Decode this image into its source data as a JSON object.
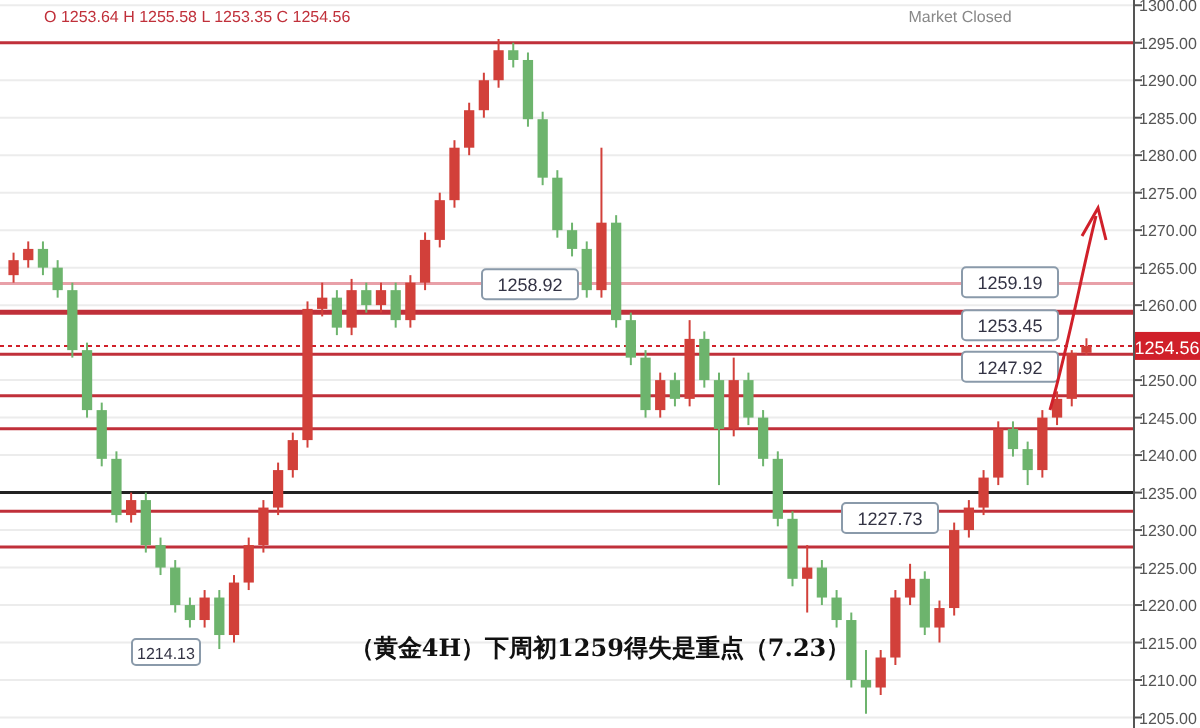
{
  "chart_data": {
    "type": "candlestick",
    "title": "（黄金4H）下周初1259得失是重点（7.23）",
    "categories": [
      null,
      null,
      null,
      null,
      null,
      null,
      null,
      null,
      null,
      null,
      null,
      null,
      null,
      null,
      null,
      null,
      null,
      null,
      null,
      null,
      null,
      null,
      null,
      null,
      null,
      null,
      null,
      null,
      null,
      null,
      null,
      null,
      null,
      null,
      null,
      null,
      null,
      null,
      null,
      null,
      null,
      null,
      null,
      null,
      null,
      null,
      null,
      null,
      null,
      null,
      null,
      null,
      null,
      null,
      null,
      null,
      null,
      null,
      null,
      null,
      null,
      null,
      null,
      null,
      null,
      null,
      null,
      null,
      null,
      null,
      null,
      null,
      null,
      null
    ],
    "ohlc": [
      [
        1264,
        1267,
        1263,
        1266
      ],
      [
        1266,
        1268.5,
        1265,
        1267.5
      ],
      [
        1267.5,
        1268.5,
        1264,
        1265
      ],
      [
        1265,
        1266,
        1261,
        1262
      ],
      [
        1262,
        1263,
        1253,
        1254
      ],
      [
        1254,
        1255,
        1245,
        1246
      ],
      [
        1246,
        1247,
        1238.5,
        1239.5
      ],
      [
        1239.5,
        1240.5,
        1231,
        1232
      ],
      [
        1232,
        1235,
        1231,
        1234
      ],
      [
        1234,
        1235,
        1227,
        1228
      ],
      [
        1228,
        1229,
        1224,
        1225
      ],
      [
        1225,
        1226,
        1219,
        1220
      ],
      [
        1220,
        1221,
        1217,
        1218
      ],
      [
        1218,
        1222,
        1217,
        1221
      ],
      [
        1221,
        1222,
        1214.13,
        1216
      ],
      [
        1216,
        1224,
        1215,
        1223
      ],
      [
        1223,
        1229,
        1222,
        1228
      ],
      [
        1228,
        1234,
        1227,
        1233
      ],
      [
        1233,
        1239,
        1232,
        1238
      ],
      [
        1238,
        1243,
        1237,
        1242
      ],
      [
        1242,
        1260.5,
        1241,
        1259.5
      ],
      [
        1259.5,
        1263,
        1258.5,
        1261
      ],
      [
        1261,
        1262,
        1256,
        1257
      ],
      [
        1257,
        1263.5,
        1256,
        1262
      ],
      [
        1262,
        1263,
        1259,
        1260
      ],
      [
        1260,
        1263,
        1259,
        1262
      ],
      [
        1262,
        1263,
        1257,
        1258
      ],
      [
        1258,
        1264,
        1257,
        1263
      ],
      [
        1263,
        1269.7,
        1262,
        1268.7
      ],
      [
        1268.7,
        1275,
        1267.7,
        1274
      ],
      [
        1274,
        1282,
        1273,
        1281
      ],
      [
        1281,
        1287,
        1280,
        1286
      ],
      [
        1286,
        1291,
        1285,
        1290
      ],
      [
        1290,
        1295.5,
        1289,
        1294
      ],
      [
        1294,
        1295,
        1291.7,
        1292.7
      ],
      [
        1292.7,
        1293.7,
        1283.8,
        1284.8
      ],
      [
        1284.8,
        1285.8,
        1276,
        1277
      ],
      [
        1277,
        1278,
        1269,
        1270
      ],
      [
        1270,
        1271,
        1266.5,
        1267.5
      ],
      [
        1267.5,
        1268.5,
        1261,
        1262
      ],
      [
        1262,
        1281,
        1261,
        1271
      ],
      [
        1271,
        1272,
        1257,
        1258
      ],
      [
        1258,
        1259,
        1252,
        1253
      ],
      [
        1253,
        1254,
        1245,
        1246
      ],
      [
        1246,
        1251,
        1245,
        1250
      ],
      [
        1250,
        1251,
        1246.5,
        1247.5
      ],
      [
        1247.5,
        1258,
        1246.5,
        1255.5
      ],
      [
        1255.5,
        1256.5,
        1249,
        1250
      ],
      [
        1250,
        1251,
        1236,
        1243.5
      ],
      [
        1243.5,
        1253,
        1242.5,
        1250
      ],
      [
        1250,
        1251,
        1244,
        1245
      ],
      [
        1245,
        1246,
        1238.5,
        1239.5
      ],
      [
        1239.5,
        1240.5,
        1230.5,
        1231.5
      ],
      [
        1231.5,
        1232.5,
        1222.5,
        1223.5
      ],
      [
        1223.5,
        1228,
        1219,
        1225
      ],
      [
        1225,
        1226,
        1220,
        1221
      ],
      [
        1221,
        1222,
        1217,
        1218
      ],
      [
        1218,
        1219,
        1209,
        1210
      ],
      [
        1210,
        1214,
        1205.5,
        1209
      ],
      [
        1209,
        1214,
        1208,
        1213
      ],
      [
        1213,
        1222,
        1212,
        1221
      ],
      [
        1221,
        1225.5,
        1220,
        1223.5
      ],
      [
        1223.5,
        1224.5,
        1216,
        1217
      ],
      [
        1217,
        1220.6,
        1215,
        1219.6
      ],
      [
        1219.6,
        1231,
        1218.6,
        1230
      ],
      [
        1230,
        1234,
        1229,
        1233
      ],
      [
        1233,
        1238,
        1232,
        1237
      ],
      [
        1237,
        1244.5,
        1236,
        1243.5
      ],
      [
        1243.5,
        1244.5,
        1239.8,
        1240.8
      ],
      [
        1240.8,
        1241.8,
        1236,
        1238
      ],
      [
        1238,
        1246,
        1237,
        1245
      ],
      [
        1245,
        1248.5,
        1244,
        1247.5
      ],
      [
        1247.5,
        1254,
        1246.5,
        1253.64
      ],
      [
        1253.64,
        1255.58,
        1253.35,
        1254.56
      ]
    ],
    "colors": [
      "#d2403a",
      "#d2403a",
      "#6db46d",
      "#6db46d",
      "#6db46d",
      "#6db46d",
      "#6db46d",
      "#6db46d",
      "#d2403a",
      "#6db46d",
      "#6db46d",
      "#6db46d",
      "#6db46d",
      "#d2403a",
      "#6db46d",
      "#d2403a",
      "#d2403a",
      "#d2403a",
      "#d2403a",
      "#d2403a",
      "#d2403a",
      "#d2403a",
      "#6db46d",
      "#d2403a",
      "#6db46d",
      "#d2403a",
      "#6db46d",
      "#d2403a",
      "#d2403a",
      "#d2403a",
      "#d2403a",
      "#d2403a",
      "#d2403a",
      "#d2403a",
      "#6db46d",
      "#6db46d",
      "#6db46d",
      "#6db46d",
      "#6db46d",
      "#6db46d",
      "#d2403a",
      "#6db46d",
      "#6db46d",
      "#6db46d",
      "#d2403a",
      "#6db46d",
      "#d2403a",
      "#6db46d",
      "#6db46d",
      "#d2403a",
      "#6db46d",
      "#6db46d",
      "#6db46d",
      "#6db46d",
      "#d2403a",
      "#6db46d",
      "#6db46d",
      "#6db46d",
      "#6db46d",
      "#d2403a",
      "#d2403a",
      "#d2403a",
      "#6db46d",
      "#d2403a",
      "#d2403a",
      "#d2403a",
      "#d2403a",
      "#d2403a",
      "#6db46d",
      "#6db46d",
      "#d2403a",
      "#d2403a",
      "#d2403a",
      "#d2403a"
    ],
    "ylim": [
      1203.6,
      1300.7
    ],
    "yticks": [
      {
        "value": 1205,
        "label": "1205.00"
      },
      {
        "value": 1210,
        "label": "1210.00"
      },
      {
        "value": 1215,
        "label": "1215.00"
      },
      {
        "value": 1220,
        "label": "1220.00"
      },
      {
        "value": 1225,
        "label": "1225.00"
      },
      {
        "value": 1230,
        "label": "1230.00"
      },
      {
        "value": 1235,
        "label": "1235.00"
      },
      {
        "value": 1240,
        "label": "1240.00"
      },
      {
        "value": 1245,
        "label": "1245.00"
      },
      {
        "value": 1250,
        "label": "1250.00"
      },
      {
        "value": 1260,
        "label": "1260.00"
      },
      {
        "value": 1265,
        "label": "1265.00"
      },
      {
        "value": 1270,
        "label": "1270.00"
      },
      {
        "value": 1275,
        "label": "1275.00"
      },
      {
        "value": 1280,
        "label": "1280.00"
      },
      {
        "value": 1285,
        "label": "1285.00"
      },
      {
        "value": 1290,
        "label": "1290.00"
      },
      {
        "value": 1295,
        "label": "1295.00"
      },
      {
        "value": 1300,
        "label": "1300.00"
      }
    ],
    "grid": "y",
    "ref_lines": [
      {
        "axis": "y",
        "value": 1295,
        "color": "#c0303a"
      },
      {
        "axis": "y",
        "value": 1262.9,
        "color": "#e8a0a8"
      },
      {
        "axis": "y",
        "value": 1259.19,
        "label": "1259.19",
        "color": "#c0303a"
      },
      {
        "axis": "y",
        "value": 1258.92,
        "label": "1258.92",
        "color": "#c0303a"
      },
      {
        "axis": "y",
        "value": 1254.56,
        "label": "1254.56",
        "color": "#d0202a",
        "line_style": "dotted"
      },
      {
        "axis": "y",
        "value": 1253.45,
        "label": "1253.45",
        "color": "#c0303a"
      },
      {
        "axis": "y",
        "value": 1247.92,
        "label": "1247.92",
        "color": "#c0303a"
      },
      {
        "axis": "y",
        "value": 1243.5,
        "color": "#c0303a"
      },
      {
        "axis": "y",
        "value": 1235,
        "color": "#222222"
      },
      {
        "axis": "y",
        "value": 1232.5,
        "color": "#c0303a"
      },
      {
        "axis": "y",
        "value": 1227.73,
        "label": "1227.73",
        "color": "#c0303a"
      }
    ],
    "annotations": [
      "O 1253.64 H 1255.58 L 1253.35 C 1254.56",
      "Market Closed",
      {
        "text": "1214.13",
        "y": 1214.13
      }
    ]
  }
}
